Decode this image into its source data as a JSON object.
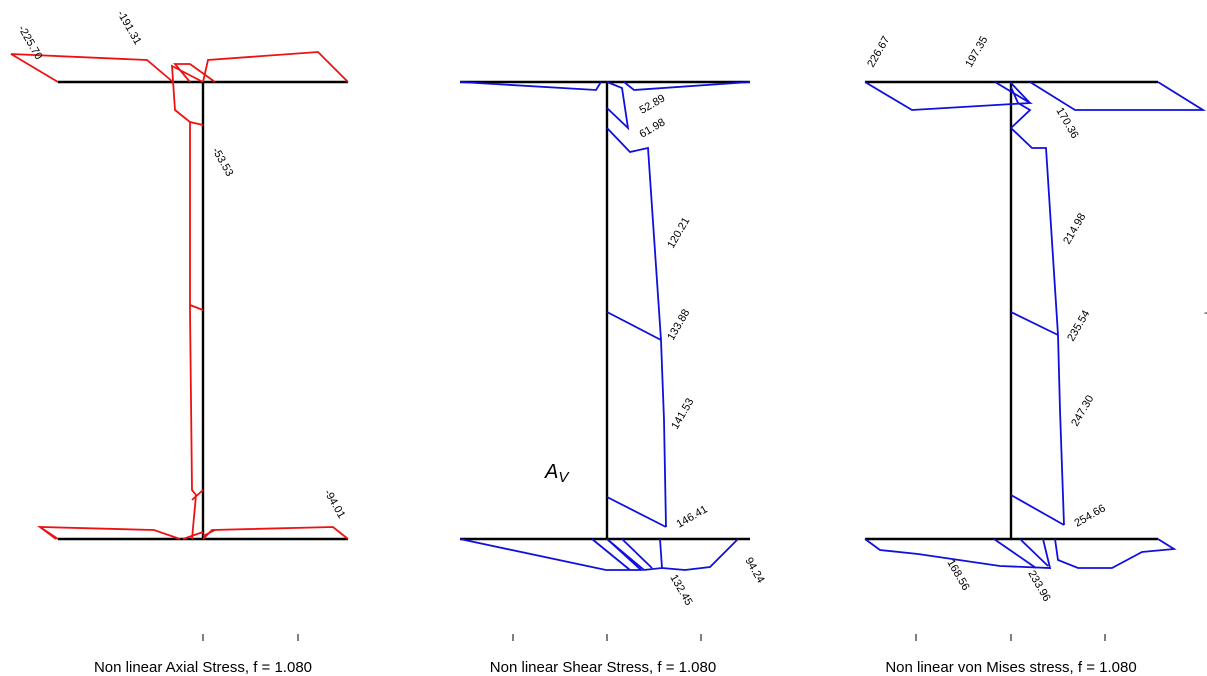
{
  "panels": [
    {
      "title": "Non linear Axial Stress, f = 1.080",
      "color": "#ee1111",
      "labels": [
        "-225.70",
        "-191.31",
        "-53.53",
        "-94.01"
      ]
    },
    {
      "title": "Non linear Shear Stress, f = 1.080",
      "color": "#1010dd",
      "area_label": "A",
      "area_label_sub": "V",
      "labels": [
        "52.89",
        "61.98",
        "120.21",
        "133.88",
        "141.53",
        "146.41",
        "132.45",
        "94.24"
      ]
    },
    {
      "title": "Non linear von Mises stress, f = 1.080",
      "color": "#1010dd",
      "labels": [
        "226.67",
        "197.35",
        "170.36",
        "214.98",
        "235.54",
        "247.30",
        "254.66",
        "168.56",
        "233.96"
      ]
    }
  ],
  "stray_mark": "-"
}
